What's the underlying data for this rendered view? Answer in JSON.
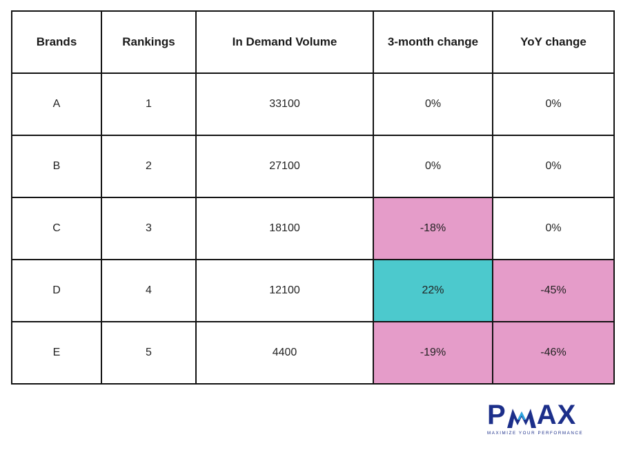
{
  "table": {
    "headers": [
      "Brands",
      "Rankings",
      "In Demand Volume",
      "3-month change",
      "YoY change"
    ],
    "rows": [
      {
        "brand": "A",
        "ranking": "1",
        "volume": "33100",
        "three_month": "0%",
        "yoy": "0%"
      },
      {
        "brand": "B",
        "ranking": "2",
        "volume": "27100",
        "three_month": "0%",
        "yoy": "0%"
      },
      {
        "brand": "C",
        "ranking": "3",
        "volume": "18100",
        "three_month": "-18%",
        "yoy": "0%"
      },
      {
        "brand": "D",
        "ranking": "4",
        "volume": "12100",
        "three_month": "22%",
        "yoy": "-45%"
      },
      {
        "brand": "E",
        "ranking": "5",
        "volume": "4400",
        "three_month": "-19%",
        "yoy": "-46%"
      }
    ]
  },
  "highlight_colors": {
    "decrease": "#e59cc9",
    "increase": "#4cc9cd"
  },
  "logo": {
    "wordmark_left": "P",
    "wordmark_right": "AX",
    "tagline": "MAXIMIZE YOUR PERFORMANCE",
    "color": "#1c2f8a",
    "accent": "#2aa7e0"
  }
}
